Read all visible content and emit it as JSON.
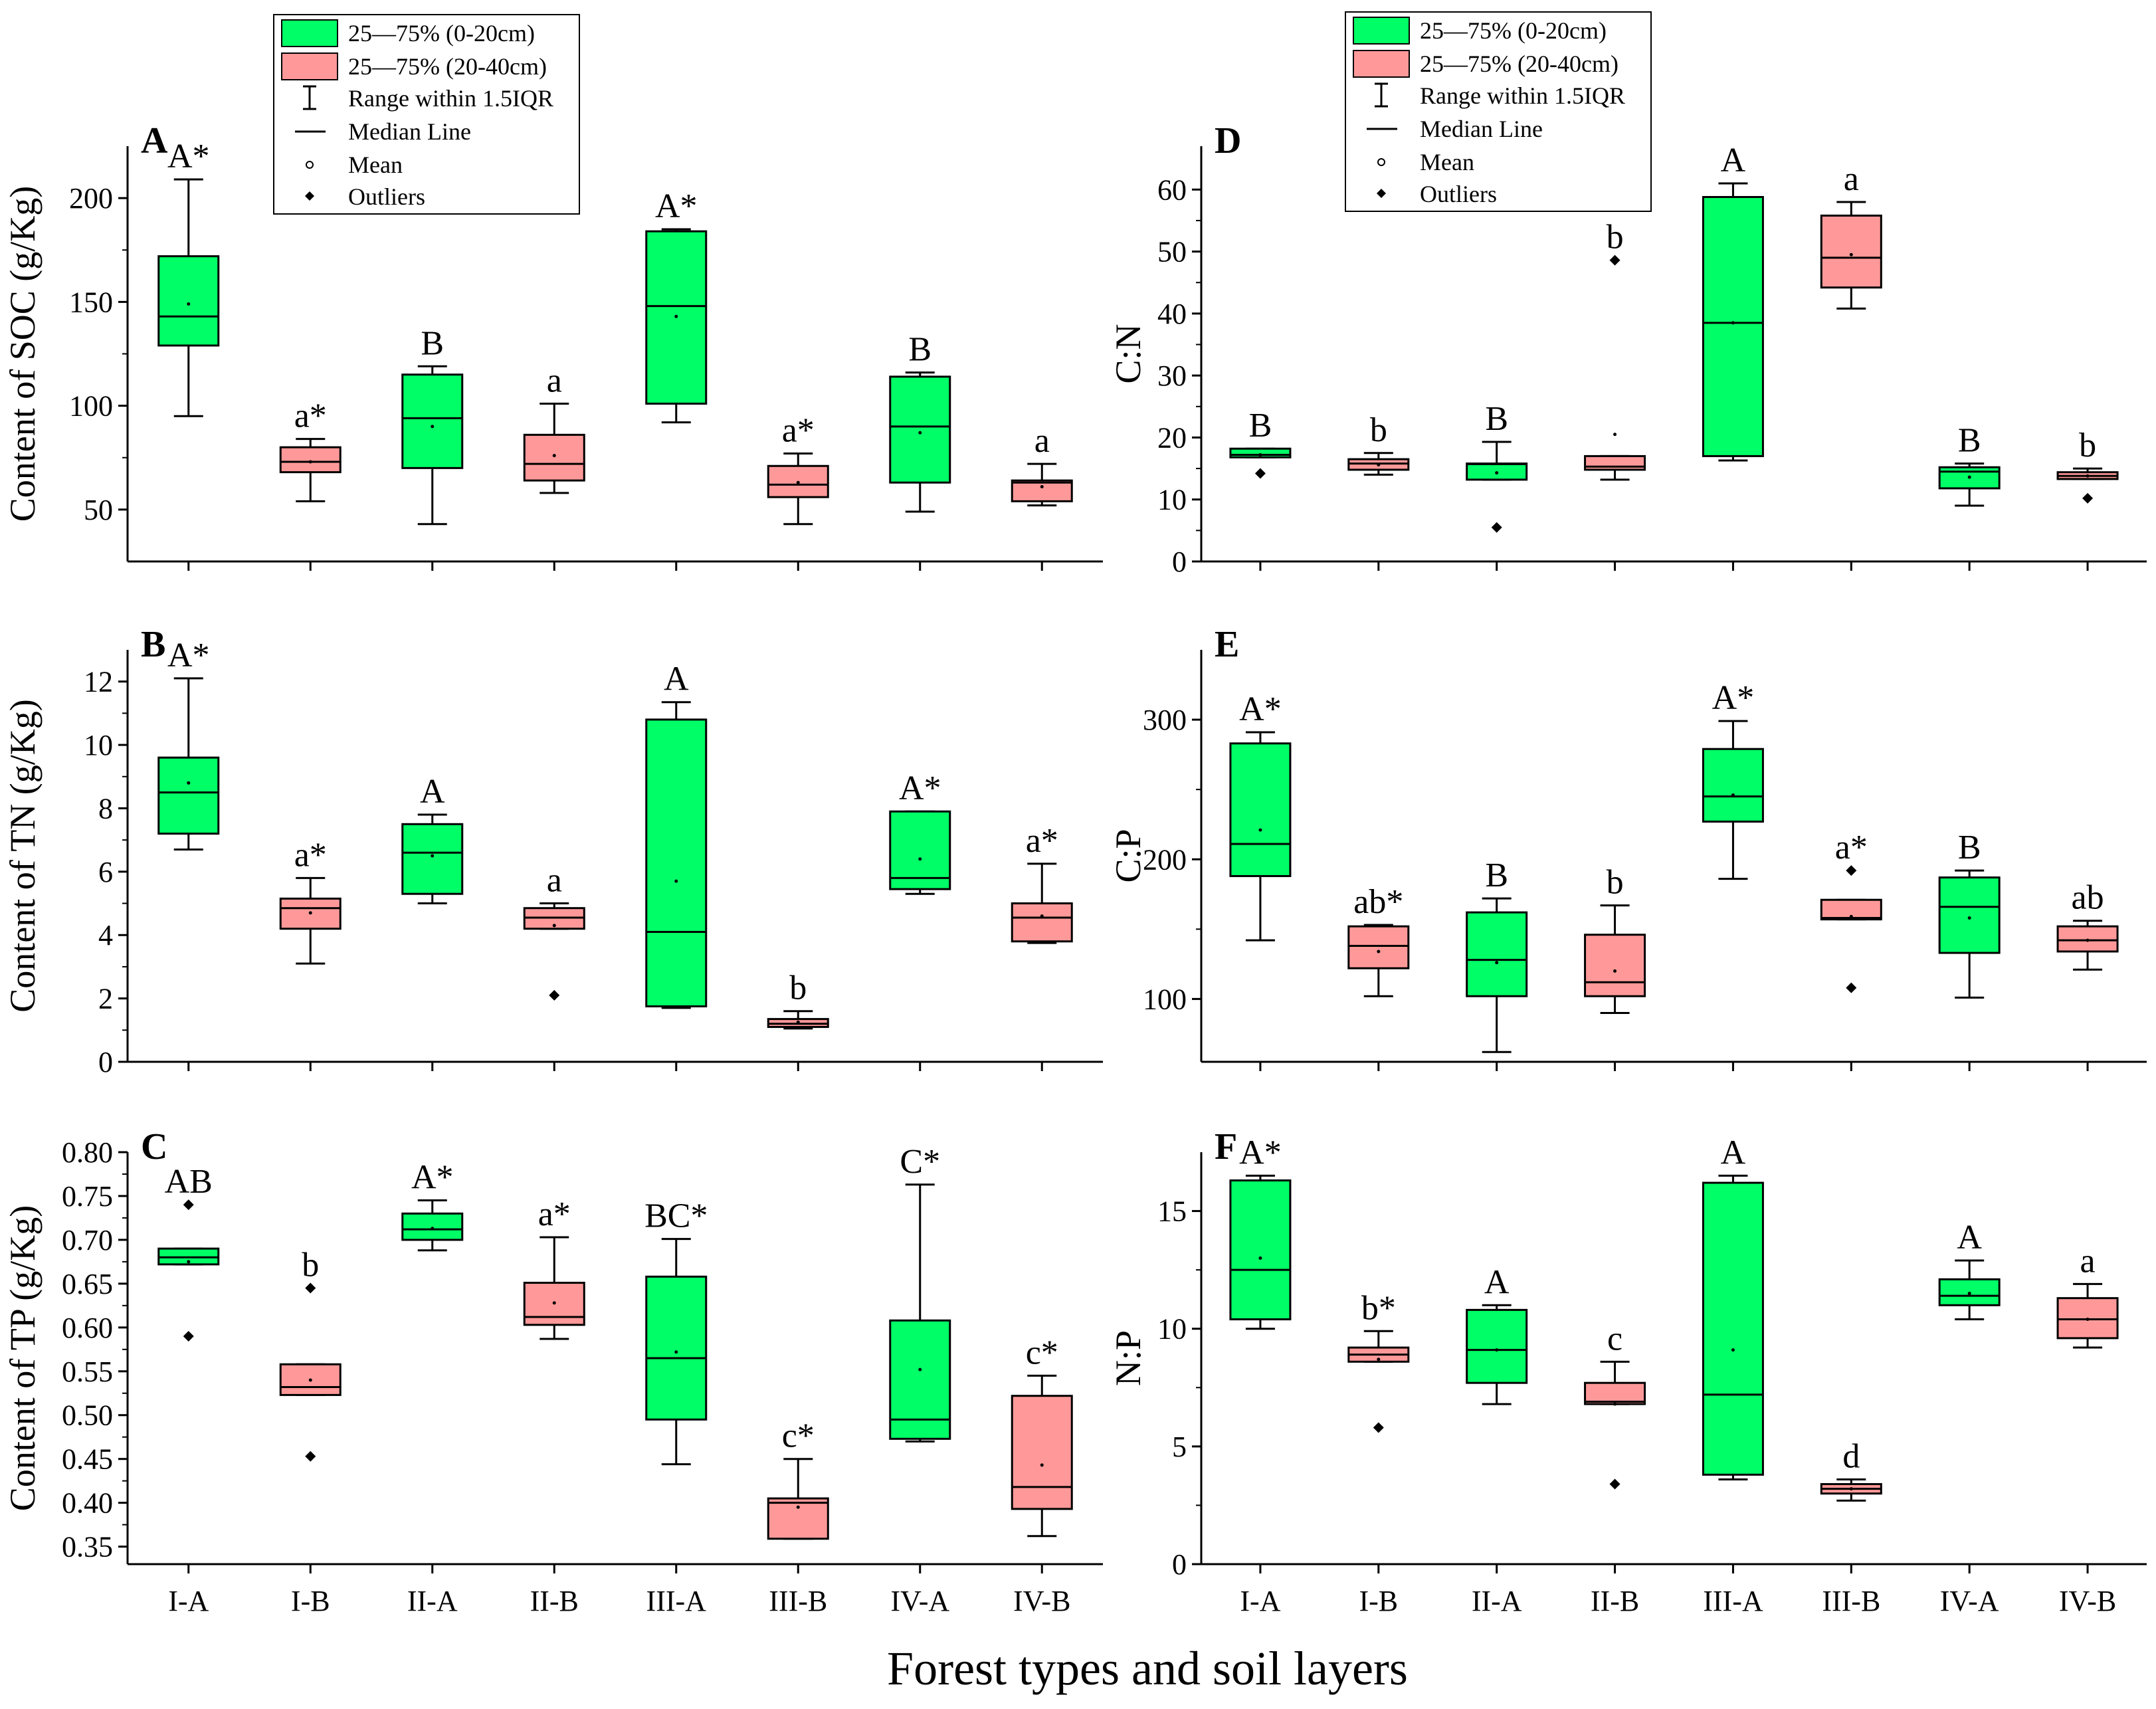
{
  "colors": {
    "box_0_20": "#00ff66",
    "box_20_40": "#ff9999",
    "stroke": "#000000"
  },
  "legend": {
    "items": [
      {
        "label": "25—75% (0-20cm)",
        "kind": "box-green"
      },
      {
        "label": "25—75% (20-40cm)",
        "kind": "box-pink"
      },
      {
        "label": "Range within 1.5IQR",
        "kind": "whisker"
      },
      {
        "label": "Median Line",
        "kind": "median"
      },
      {
        "label": "Mean",
        "kind": "mean"
      },
      {
        "label": "Outliers",
        "kind": "outlier"
      }
    ]
  },
  "global_xlabel": "Forest types and soil layers",
  "chart_data": [
    {
      "panel": "A",
      "type": "box",
      "ylabel": "Content of SOC (g/Kg)",
      "ylim": [
        25,
        225
      ],
      "yticks": [
        50,
        100,
        150,
        200
      ],
      "ytick_labels": [
        "50",
        "100",
        "150",
        "200"
      ],
      "categories": [
        "I-A",
        "I-B",
        "II-A",
        "II-B",
        "III-A",
        "III-B",
        "IV-A",
        "IV-B"
      ],
      "boxes": [
        {
          "layer": "0-20cm",
          "q1": 129,
          "median": 143,
          "q3": 172,
          "wlo": 95,
          "whi": 209,
          "mean": 149,
          "outliers": [],
          "label": "A*"
        },
        {
          "layer": "20-40cm",
          "q1": 68,
          "median": 73,
          "q3": 80,
          "wlo": 54,
          "whi": 84,
          "mean": 73,
          "outliers": [],
          "label": "a*"
        },
        {
          "layer": "0-20cm",
          "q1": 70,
          "median": 94,
          "q3": 115,
          "wlo": 43,
          "whi": 119,
          "mean": 90,
          "outliers": [],
          "label": "B"
        },
        {
          "layer": "20-40cm",
          "q1": 64,
          "median": 72,
          "q3": 86,
          "wlo": 58,
          "whi": 101,
          "mean": 76,
          "outliers": [],
          "label": "a"
        },
        {
          "layer": "0-20cm",
          "q1": 101,
          "median": 148,
          "q3": 184,
          "wlo": 92,
          "whi": 185,
          "mean": 143,
          "outliers": [],
          "label": "A*"
        },
        {
          "layer": "20-40cm",
          "q1": 56,
          "median": 62,
          "q3": 71,
          "wlo": 43,
          "whi": 77,
          "mean": 63,
          "outliers": [],
          "label": "a*"
        },
        {
          "layer": "0-20cm",
          "q1": 63,
          "median": 90,
          "q3": 114,
          "wlo": 49,
          "whi": 116,
          "mean": 87,
          "outliers": [],
          "label": "B"
        },
        {
          "layer": "20-40cm",
          "q1": 54,
          "median": 63,
          "q3": 64,
          "wlo": 52,
          "whi": 72,
          "mean": 61,
          "outliers": [],
          "label": "a"
        }
      ]
    },
    {
      "panel": "B",
      "type": "box",
      "ylabel": "Content of TN (g/Kg)",
      "ylim": [
        0,
        13
      ],
      "yticks": [
        0,
        2,
        4,
        6,
        8,
        10,
        12
      ],
      "ytick_labels": [
        "0",
        "2",
        "4",
        "6",
        "8",
        "10",
        "12"
      ],
      "categories": [
        "I-A",
        "I-B",
        "II-A",
        "II-B",
        "III-A",
        "III-B",
        "IV-A",
        "IV-B"
      ],
      "boxes": [
        {
          "layer": "0-20cm",
          "q1": 7.2,
          "median": 8.5,
          "q3": 9.6,
          "wlo": 6.7,
          "whi": 12.1,
          "mean": 8.8,
          "outliers": [],
          "label": "A*"
        },
        {
          "layer": "20-40cm",
          "q1": 4.2,
          "median": 4.85,
          "q3": 5.15,
          "wlo": 3.1,
          "whi": 5.8,
          "mean": 4.7,
          "outliers": [],
          "label": "a*"
        },
        {
          "layer": "0-20cm",
          "q1": 5.3,
          "median": 6.6,
          "q3": 7.5,
          "wlo": 5.0,
          "whi": 7.8,
          "mean": 6.5,
          "outliers": [],
          "label": "A"
        },
        {
          "layer": "20-40cm",
          "q1": 4.2,
          "median": 4.55,
          "q3": 4.85,
          "wlo": 4.2,
          "whi": 5.0,
          "mean": 4.3,
          "outliers": [
            2.1
          ],
          "label": "a"
        },
        {
          "layer": "0-20cm",
          "q1": 1.75,
          "median": 4.1,
          "q3": 10.8,
          "wlo": 1.7,
          "whi": 11.35,
          "mean": 5.7,
          "outliers": [],
          "label": "A"
        },
        {
          "layer": "20-40cm",
          "q1": 1.1,
          "median": 1.2,
          "q3": 1.35,
          "wlo": 1.05,
          "whi": 1.6,
          "mean": 1.25,
          "outliers": [],
          "label": "b"
        },
        {
          "layer": "0-20cm",
          "q1": 5.45,
          "median": 5.8,
          "q3": 7.9,
          "wlo": 5.3,
          "whi": 7.9,
          "mean": 6.4,
          "outliers": [],
          "label": "A*"
        },
        {
          "layer": "20-40cm",
          "q1": 3.8,
          "median": 4.55,
          "q3": 5.0,
          "wlo": 3.75,
          "whi": 6.25,
          "mean": 4.6,
          "outliers": [],
          "label": "a*"
        }
      ]
    },
    {
      "panel": "C",
      "type": "box",
      "ylabel": "Content of TP (g/Kg)",
      "ylim": [
        0.33,
        0.8
      ],
      "yticks": [
        0.35,
        0.4,
        0.45,
        0.5,
        0.55,
        0.6,
        0.65,
        0.7,
        0.75,
        0.8
      ],
      "ytick_labels": [
        "0.35",
        "0.40",
        "0.45",
        "0.50",
        "0.55",
        "0.60",
        "0.65",
        "0.70",
        "0.75",
        "0.80"
      ],
      "categories": [
        "I-A",
        "I-B",
        "II-A",
        "II-B",
        "III-A",
        "III-B",
        "IV-A",
        "IV-B"
      ],
      "boxes": [
        {
          "layer": "0-20cm",
          "q1": 0.672,
          "median": 0.68,
          "q3": 0.69,
          "wlo": 0.672,
          "whi": 0.69,
          "mean": 0.675,
          "outliers": [
            0.74,
            0.59
          ],
          "label": "AB"
        },
        {
          "layer": "20-40cm",
          "q1": 0.523,
          "median": 0.532,
          "q3": 0.558,
          "wlo": 0.523,
          "whi": 0.558,
          "mean": 0.54,
          "outliers": [
            0.645,
            0.453
          ],
          "label": "b"
        },
        {
          "layer": "0-20cm",
          "q1": 0.7,
          "median": 0.712,
          "q3": 0.73,
          "wlo": 0.688,
          "whi": 0.745,
          "mean": 0.713,
          "outliers": [],
          "label": "A*"
        },
        {
          "layer": "20-40cm",
          "q1": 0.603,
          "median": 0.612,
          "q3": 0.651,
          "wlo": 0.587,
          "whi": 0.703,
          "mean": 0.628,
          "outliers": [],
          "label": "a*"
        },
        {
          "layer": "0-20cm",
          "q1": 0.495,
          "median": 0.565,
          "q3": 0.658,
          "wlo": 0.444,
          "whi": 0.701,
          "mean": 0.572,
          "outliers": [],
          "label": "BC*"
        },
        {
          "layer": "20-40cm",
          "q1": 0.359,
          "median": 0.4,
          "q3": 0.405,
          "wlo": 0.359,
          "whi": 0.45,
          "mean": 0.395,
          "outliers": [],
          "label": "c*"
        },
        {
          "layer": "0-20cm",
          "q1": 0.473,
          "median": 0.495,
          "q3": 0.608,
          "wlo": 0.47,
          "whi": 0.763,
          "mean": 0.552,
          "outliers": [],
          "label": "C*"
        },
        {
          "layer": "20-40cm",
          "q1": 0.393,
          "median": 0.418,
          "q3": 0.522,
          "wlo": 0.362,
          "whi": 0.545,
          "mean": 0.443,
          "outliers": [],
          "label": "c*"
        }
      ]
    },
    {
      "panel": "D",
      "type": "box",
      "ylabel": "C:N",
      "ylim": [
        0,
        67
      ],
      "yticks": [
        0,
        10,
        20,
        30,
        40,
        50,
        60
      ],
      "ytick_labels": [
        "0",
        "10",
        "20",
        "30",
        "40",
        "50",
        "60"
      ],
      "categories": [
        "I-A",
        "I-B",
        "II-A",
        "II-B",
        "III-A",
        "III-B",
        "IV-A",
        "IV-B"
      ],
      "boxes": [
        {
          "layer": "0-20cm",
          "q1": 16.8,
          "median": 17.2,
          "q3": 18.2,
          "wlo": 16.8,
          "whi": 18.2,
          "mean": 17.2,
          "outliers": [
            14.2
          ],
          "label": "B"
        },
        {
          "layer": "20-40cm",
          "q1": 14.8,
          "median": 15.8,
          "q3": 16.5,
          "wlo": 14.0,
          "whi": 17.5,
          "mean": 15.6,
          "outliers": [],
          "label": "b"
        },
        {
          "layer": "0-20cm",
          "q1": 13.2,
          "median": 15.7,
          "q3": 15.8,
          "wlo": 13.2,
          "whi": 19.3,
          "mean": 14.3,
          "outliers": [
            5.5
          ],
          "label": "B"
        },
        {
          "layer": "20-40cm",
          "q1": 14.8,
          "median": 15.3,
          "q3": 17.0,
          "wlo": 13.2,
          "whi": 17.0,
          "mean": 20.5,
          "outliers": [
            48.6
          ],
          "label": "b"
        },
        {
          "layer": "0-20cm",
          "q1": 17.0,
          "median": 38.5,
          "q3": 58.8,
          "wlo": 16.3,
          "whi": 61.0,
          "mean": 38.5,
          "outliers": [],
          "label": "A"
        },
        {
          "layer": "20-40cm",
          "q1": 44.2,
          "median": 49.0,
          "q3": 55.8,
          "wlo": 40.8,
          "whi": 58.0,
          "mean": 49.5,
          "outliers": [],
          "label": "a"
        },
        {
          "layer": "0-20cm",
          "q1": 11.8,
          "median": 14.5,
          "q3": 15.2,
          "wlo": 9.0,
          "whi": 15.8,
          "mean": 13.6,
          "outliers": [],
          "label": "B"
        },
        {
          "layer": "20-40cm",
          "q1": 13.3,
          "median": 13.8,
          "q3": 14.4,
          "wlo": 13.3,
          "whi": 15.0,
          "mean": 13.8,
          "outliers": [
            10.2
          ],
          "label": "b"
        }
      ]
    },
    {
      "panel": "E",
      "type": "box",
      "ylabel": "C:P",
      "ylim": [
        55,
        350
      ],
      "yticks": [
        100,
        200,
        300
      ],
      "ytick_labels": [
        "100",
        "200",
        "300"
      ],
      "categories": [
        "I-A",
        "I-B",
        "II-A",
        "II-B",
        "III-A",
        "III-B",
        "IV-A",
        "IV-B"
      ],
      "boxes": [
        {
          "layer": "0-20cm",
          "q1": 188,
          "median": 211,
          "q3": 283,
          "wlo": 142,
          "whi": 291,
          "mean": 221,
          "outliers": [],
          "label": "A*"
        },
        {
          "layer": "20-40cm",
          "q1": 122,
          "median": 138,
          "q3": 152,
          "wlo": 102,
          "whi": 153,
          "mean": 134,
          "outliers": [],
          "label": "ab*"
        },
        {
          "layer": "0-20cm",
          "q1": 102,
          "median": 128,
          "q3": 162,
          "wlo": 62,
          "whi": 172,
          "mean": 126,
          "outliers": [],
          "label": "B"
        },
        {
          "layer": "20-40cm",
          "q1": 102,
          "median": 112,
          "q3": 146,
          "wlo": 90,
          "whi": 167,
          "mean": 120,
          "outliers": [],
          "label": "b"
        },
        {
          "layer": "0-20cm",
          "q1": 227,
          "median": 245,
          "q3": 279,
          "wlo": 186,
          "whi": 299,
          "mean": 246,
          "outliers": [],
          "label": "A*"
        },
        {
          "layer": "20-40cm",
          "q1": 157,
          "median": 158,
          "q3": 171,
          "wlo": 157,
          "whi": 171,
          "mean": 159,
          "outliers": [
            192,
            108
          ],
          "label": "a*"
        },
        {
          "layer": "0-20cm",
          "q1": 133,
          "median": 166,
          "q3": 187,
          "wlo": 101,
          "whi": 192,
          "mean": 158,
          "outliers": [],
          "label": "B"
        },
        {
          "layer": "20-40cm",
          "q1": 134,
          "median": 142,
          "q3": 152,
          "wlo": 121,
          "whi": 156,
          "mean": 142,
          "outliers": [],
          "label": "ab"
        }
      ]
    },
    {
      "panel": "F",
      "type": "box",
      "ylabel": "N:P",
      "ylim": [
        0,
        17.5
      ],
      "yticks": [
        0,
        5,
        10,
        15
      ],
      "ytick_labels": [
        "0",
        "5",
        "10",
        "15"
      ],
      "categories": [
        "I-A",
        "I-B",
        "II-A",
        "II-B",
        "III-A",
        "III-B",
        "IV-A",
        "IV-B"
      ],
      "boxes": [
        {
          "layer": "0-20cm",
          "q1": 10.4,
          "median": 12.5,
          "q3": 16.3,
          "wlo": 10.0,
          "whi": 16.5,
          "mean": 13.0,
          "outliers": [],
          "label": "A*"
        },
        {
          "layer": "20-40cm",
          "q1": 8.6,
          "median": 8.9,
          "q3": 9.2,
          "wlo": 8.6,
          "whi": 9.9,
          "mean": 8.7,
          "outliers": [
            5.8
          ],
          "label": "b*"
        },
        {
          "layer": "0-20cm",
          "q1": 7.7,
          "median": 9.1,
          "q3": 10.8,
          "wlo": 6.8,
          "whi": 11.0,
          "mean": 9.1,
          "outliers": [],
          "label": "A"
        },
        {
          "layer": "20-40cm",
          "q1": 6.8,
          "median": 6.9,
          "q3": 7.7,
          "wlo": 6.8,
          "whi": 8.6,
          "mean": 6.8,
          "outliers": [
            3.4
          ],
          "label": "c"
        },
        {
          "layer": "0-20cm",
          "q1": 3.8,
          "median": 7.2,
          "q3": 16.2,
          "wlo": 3.6,
          "whi": 16.5,
          "mean": 9.1,
          "outliers": [],
          "label": "A"
        },
        {
          "layer": "20-40cm",
          "q1": 3.0,
          "median": 3.2,
          "q3": 3.4,
          "wlo": 2.7,
          "whi": 3.6,
          "mean": 3.2,
          "outliers": [],
          "label": "d"
        },
        {
          "layer": "0-20cm",
          "q1": 11.0,
          "median": 11.4,
          "q3": 12.1,
          "wlo": 10.4,
          "whi": 12.9,
          "mean": 11.5,
          "outliers": [],
          "label": "A"
        },
        {
          "layer": "20-40cm",
          "q1": 9.6,
          "median": 10.4,
          "q3": 11.3,
          "wlo": 9.2,
          "whi": 11.9,
          "mean": 10.4,
          "outliers": [],
          "label": "a"
        }
      ]
    }
  ]
}
